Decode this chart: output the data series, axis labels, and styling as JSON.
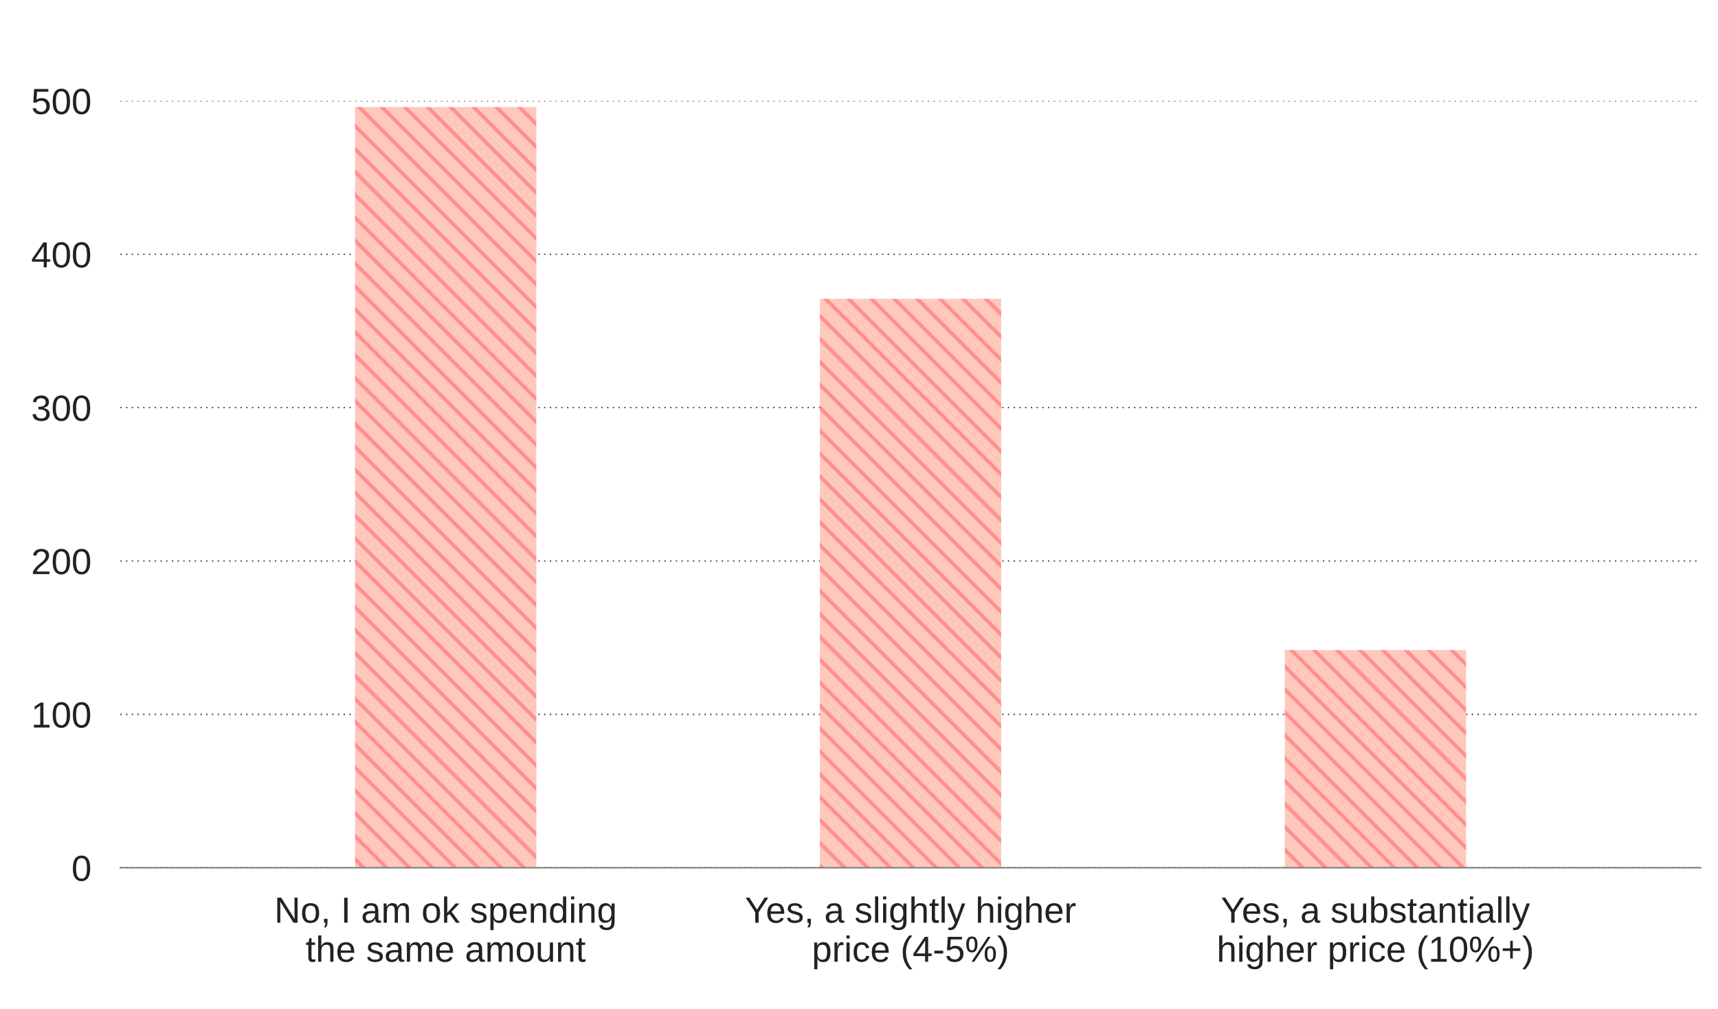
{
  "chart_data": {
    "type": "bar",
    "categories": [
      "No, I am ok spending\nthe same amount",
      "Yes, a slightly higher\nprice (4-5%)",
      "Yes, a substantially\nhigher price (10%+)"
    ],
    "values": [
      496,
      371,
      142
    ],
    "color": "#ffc8bd",
    "ylim": [
      0,
      500
    ],
    "yticks": [
      0,
      100,
      200,
      300,
      400,
      500
    ],
    "grid": "y"
  }
}
